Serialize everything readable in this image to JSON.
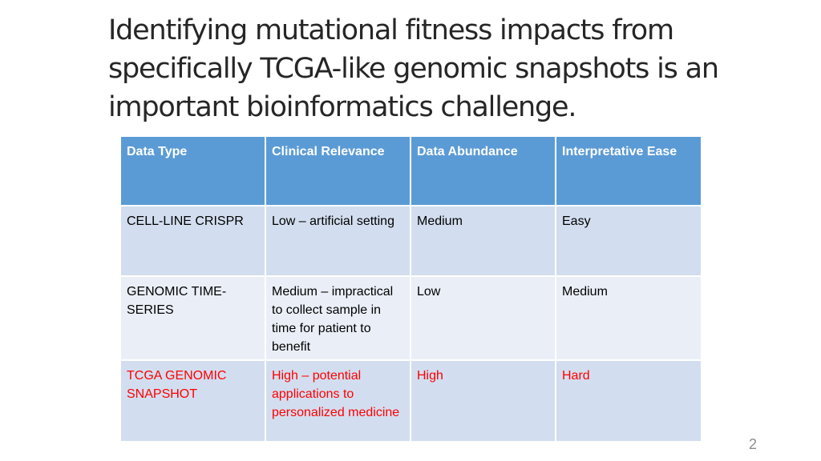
{
  "slide": {
    "title": "Identifying mutational fitness impacts from specifically TCGA-like genomic snapshots is an important bioinformatics challenge.",
    "page_number": "2"
  },
  "table": {
    "headers": [
      "Data Type",
      "Clinical Relevance",
      "Data Abundance",
      "Interpretative Ease"
    ],
    "rows": [
      [
        "CELL-LINE CRISPR",
        "Low – artificial setting",
        "Medium",
        "Easy"
      ],
      [
        "GENOMIC TIME-SERIES",
        "Medium – impractical to collect sample in time for patient to benefit",
        "Low",
        "Medium"
      ],
      [
        "TCGA GENOMIC SNAPSHOT",
        "High – potential applications to personalized medicine",
        "High",
        "Hard"
      ]
    ]
  },
  "colors": {
    "header_bg": "#5b9bd5",
    "row_dark": "#d2deef",
    "row_light": "#eaeff7",
    "highlight_text": "#ff0000"
  }
}
